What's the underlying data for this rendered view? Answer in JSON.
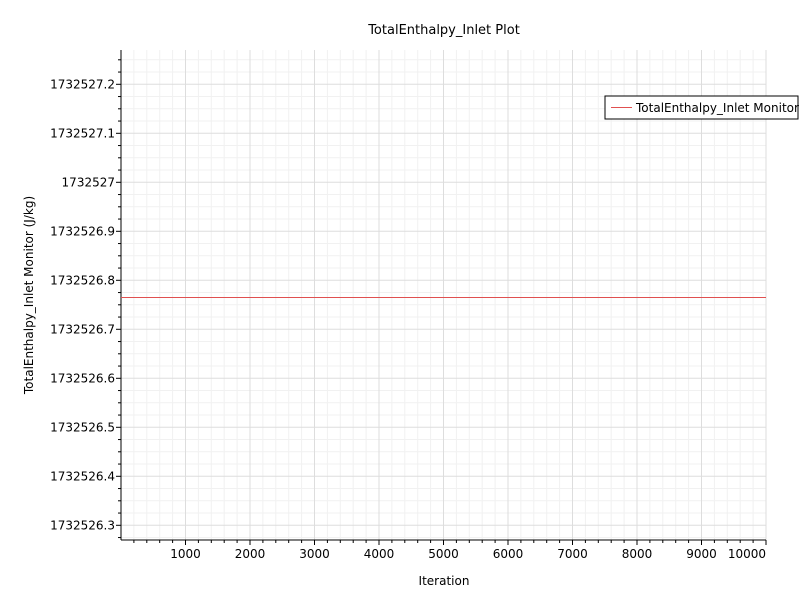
{
  "chart_data": {
    "type": "line",
    "title": "TotalEnthalpy_Inlet Plot",
    "xlabel": "Iteration",
    "ylabel": "TotalEnthalpy_Inlet Monitor (J/kg)",
    "xlim": [
      0,
      10000
    ],
    "ylim": [
      1732526.27,
      1732527.27
    ],
    "x_ticks": [
      1000,
      2000,
      3000,
      4000,
      5000,
      6000,
      7000,
      8000,
      9000,
      10000
    ],
    "x_tick_labels": [
      "1000",
      "2000",
      "3000",
      "4000",
      "5000",
      "6000",
      "7000",
      "8000",
      "9000",
      "10000"
    ],
    "y_ticks": [
      1732526.3,
      1732526.4,
      1732526.5,
      1732526.6,
      1732526.7,
      1732526.8,
      1732526.9,
      1732527.0,
      1732527.1,
      1732527.2
    ],
    "y_tick_labels": [
      "1732526.3",
      "1732526.4",
      "1732526.5",
      "1732526.6",
      "1732526.7",
      "1732526.8",
      "1732526.9",
      "1732527",
      "1732527.1",
      "1732527.2"
    ],
    "grid": true,
    "legend_position": "top-right",
    "series": [
      {
        "name": "TotalEnthalpy_Inlet Monitor",
        "color": "#e05050",
        "x": [
          0,
          10000
        ],
        "y": [
          1732526.765,
          1732526.765
        ]
      }
    ]
  }
}
